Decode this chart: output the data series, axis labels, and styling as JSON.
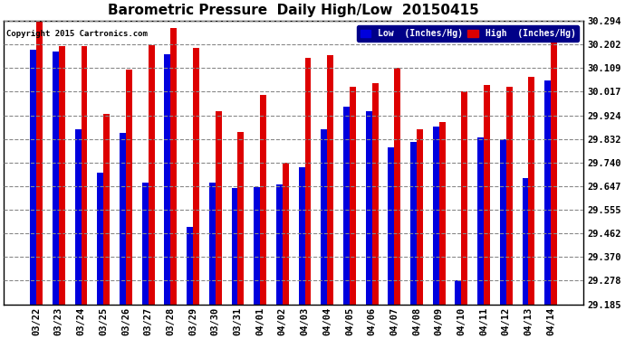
{
  "title": "Barometric Pressure  Daily High/Low  20150415",
  "copyright": "Copyright 2015 Cartronics.com",
  "legend_low": "Low  (Inches/Hg)",
  "legend_high": "High  (Inches/Hg)",
  "dates": [
    "03/22",
    "03/23",
    "03/24",
    "03/25",
    "03/26",
    "03/27",
    "03/28",
    "03/29",
    "03/30",
    "03/31",
    "04/01",
    "04/02",
    "04/03",
    "04/04",
    "04/05",
    "04/06",
    "04/07",
    "04/08",
    "04/09",
    "04/10",
    "04/11",
    "04/12",
    "04/13",
    "04/14"
  ],
  "low": [
    30.18,
    30.175,
    29.87,
    29.7,
    29.855,
    29.66,
    30.165,
    29.49,
    29.66,
    29.64,
    29.645,
    29.655,
    29.72,
    29.87,
    29.96,
    29.94,
    29.8,
    29.82,
    29.88,
    29.278,
    29.84,
    29.83,
    29.68,
    30.06
  ],
  "high": [
    30.29,
    30.195,
    30.195,
    29.93,
    30.105,
    30.2,
    30.265,
    30.19,
    29.94,
    29.86,
    30.005,
    29.74,
    30.15,
    30.16,
    30.035,
    30.05,
    30.11,
    29.87,
    29.9,
    30.02,
    30.045,
    30.035,
    30.075,
    30.21
  ],
  "low_color": "#0000dd",
  "high_color": "#dd0000",
  "bg_color": "#ffffff",
  "plot_bg_color": "#ffffff",
  "grid_color": "#888888",
  "ylim_min": 29.185,
  "ylim_max": 30.294,
  "yticks": [
    29.185,
    29.278,
    29.37,
    29.462,
    29.555,
    29.647,
    29.74,
    29.832,
    29.924,
    30.017,
    30.109,
    30.202,
    30.294
  ],
  "title_fontsize": 11,
  "tick_fontsize": 7.5,
  "bar_width": 0.28,
  "figwidth": 6.9,
  "figheight": 3.75
}
